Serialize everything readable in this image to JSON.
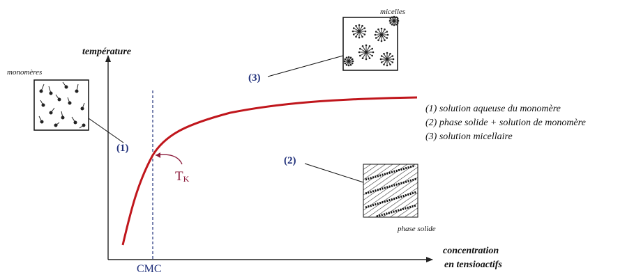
{
  "axes": {
    "y_label": "température",
    "x_label_line1": "concentration",
    "x_label_line2": "en tensioactifs",
    "cmc_label": "CMC"
  },
  "krafft": {
    "label_main": "T",
    "label_sub": "K",
    "color": "#8b1a3a"
  },
  "curve_color": "#c0161c",
  "marker_color": "#1f2f7a",
  "insets": {
    "monomers": {
      "title": "monomères"
    },
    "micelles": {
      "title": "micelles"
    },
    "solid": {
      "title": "phase solide"
    }
  },
  "region_markers": [
    "(1)",
    "(2)",
    "(3)"
  ],
  "legend": [
    "(1) solution aqueuse du monomère",
    "(2) phase solide + solution de monomère",
    "(3) solution micellaire"
  ]
}
